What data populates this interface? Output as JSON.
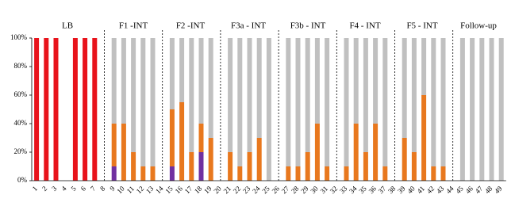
{
  "chart_data": {
    "type": "stacked_bar",
    "annotations": [
      "LB",
      "F1 -INT",
      "F2 -INT",
      "F3a - INT",
      "F3b - INT",
      "F4 - INT",
      "F5 - INT",
      "Follow-up"
    ],
    "categories": [
      "1",
      "2",
      "3",
      "4",
      "5",
      "6",
      "7",
      "8",
      "9",
      "10",
      "11",
      "12",
      "13",
      "14",
      "15",
      "16",
      "17",
      "18",
      "19",
      "20",
      "21",
      "22",
      "23",
      "24",
      "25",
      "26",
      "27",
      "28",
      "29",
      "30",
      "31",
      "32",
      "33",
      "34",
      "35",
      "36",
      "37",
      "38",
      "39",
      "40",
      "41",
      "42",
      "43",
      "44",
      "45",
      "46",
      "47",
      "48",
      "49"
    ],
    "series": [
      {
        "color": "#e8131b",
        "values": [
          100,
          100,
          100,
          null,
          100,
          100,
          100,
          null,
          null,
          null,
          null,
          null,
          null,
          null,
          null,
          null,
          null,
          null,
          null,
          null,
          null,
          null,
          null,
          null,
          null,
          null,
          null,
          null,
          null,
          null,
          null,
          null,
          null,
          null,
          null,
          null,
          null,
          null,
          null,
          null,
          null,
          null,
          null,
          null,
          null,
          null,
          null,
          null,
          null
        ]
      },
      {
        "color": "#7030a0",
        "values": [
          null,
          null,
          null,
          null,
          null,
          null,
          null,
          null,
          10,
          null,
          null,
          null,
          null,
          null,
          10,
          null,
          null,
          20,
          null,
          null,
          null,
          null,
          null,
          null,
          null,
          null,
          null,
          null,
          null,
          null,
          null,
          null,
          null,
          null,
          null,
          null,
          null,
          null,
          null,
          null,
          null,
          null,
          null,
          null,
          null,
          null,
          null,
          null,
          null
        ]
      },
      {
        "color": "#e8781e",
        "values": [
          null,
          null,
          null,
          null,
          null,
          null,
          null,
          null,
          30,
          40,
          20,
          10,
          10,
          null,
          40,
          55,
          20,
          20,
          30,
          null,
          20,
          10,
          20,
          30,
          null,
          null,
          10,
          10,
          20,
          40,
          10,
          null,
          10,
          40,
          20,
          40,
          10,
          null,
          30,
          20,
          60,
          10,
          10,
          null,
          null,
          null,
          null,
          null,
          null
        ]
      },
      {
        "color": "#c0c0c0",
        "values": [
          null,
          null,
          null,
          null,
          null,
          null,
          null,
          null,
          60,
          60,
          80,
          90,
          90,
          null,
          50,
          45,
          80,
          60,
          70,
          null,
          80,
          90,
          80,
          70,
          100,
          null,
          90,
          90,
          80,
          60,
          90,
          null,
          90,
          60,
          80,
          60,
          90,
          null,
          70,
          80,
          40,
          90,
          90,
          null,
          100,
          100,
          100,
          100,
          100
        ]
      }
    ],
    "ylim": [
      0,
      100
    ],
    "yticks": [
      {
        "value": 0,
        "label": "0%"
      },
      {
        "value": 20,
        "label": "20%"
      },
      {
        "value": 40,
        "label": "40%"
      },
      {
        "value": 60,
        "label": "60%"
      },
      {
        "value": 80,
        "label": "80%"
      },
      {
        "value": 100,
        "label": "100%"
      }
    ]
  }
}
